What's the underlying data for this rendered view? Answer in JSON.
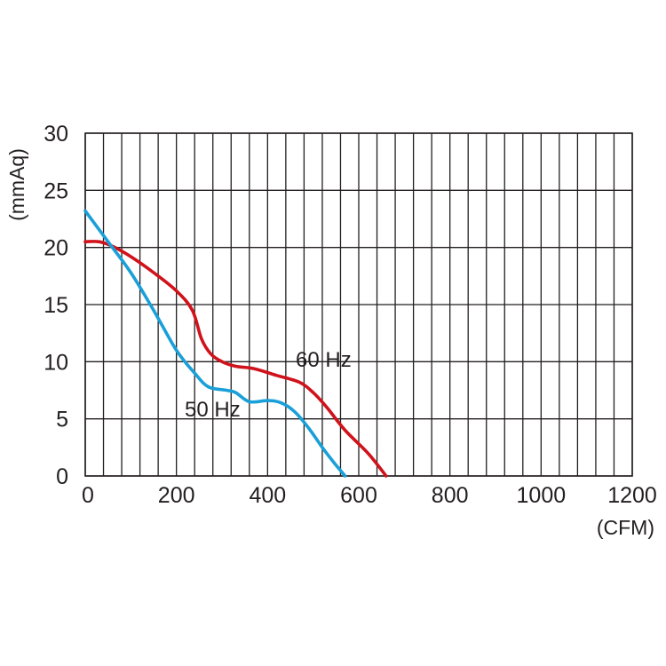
{
  "chart_data": {
    "type": "line",
    "title": "",
    "xlabel": "(CFM)",
    "ylabel": "(mmAq)",
    "xlim": [
      0,
      1200
    ],
    "ylim": [
      0,
      30
    ],
    "x_ticks": [
      0,
      200,
      400,
      600,
      800,
      1000,
      1200
    ],
    "y_ticks": [
      0,
      5,
      10,
      15,
      20,
      25,
      30
    ],
    "grid": true,
    "series": [
      {
        "name": "60 Hz",
        "color": "#d0121b",
        "points": [
          [
            0,
            20.5
          ],
          [
            30,
            20.5
          ],
          [
            60,
            20.1
          ],
          [
            100,
            19.2
          ],
          [
            150,
            17.8
          ],
          [
            200,
            16.2
          ],
          [
            235,
            14.5
          ],
          [
            255,
            12
          ],
          [
            275,
            10.7
          ],
          [
            300,
            10
          ],
          [
            330,
            9.6
          ],
          [
            370,
            9.4
          ],
          [
            420,
            8.8
          ],
          [
            470,
            8.2
          ],
          [
            500,
            7.3
          ],
          [
            530,
            6
          ],
          [
            570,
            4
          ],
          [
            620,
            2
          ],
          [
            660,
            0
          ]
        ]
      },
      {
        "name": "50 Hz",
        "color": "#1aa0d8",
        "points": [
          [
            0,
            23.2
          ],
          [
            50,
            20.5
          ],
          [
            100,
            17.8
          ],
          [
            150,
            14.5
          ],
          [
            200,
            11
          ],
          [
            240,
            9
          ],
          [
            270,
            7.8
          ],
          [
            310,
            7.5
          ],
          [
            330,
            7.3
          ],
          [
            360,
            6.5
          ],
          [
            400,
            6.6
          ],
          [
            430,
            6.4
          ],
          [
            460,
            5.6
          ],
          [
            490,
            4.2
          ],
          [
            520,
            2.5
          ],
          [
            545,
            1.2
          ],
          [
            570,
            0
          ]
        ]
      }
    ]
  }
}
